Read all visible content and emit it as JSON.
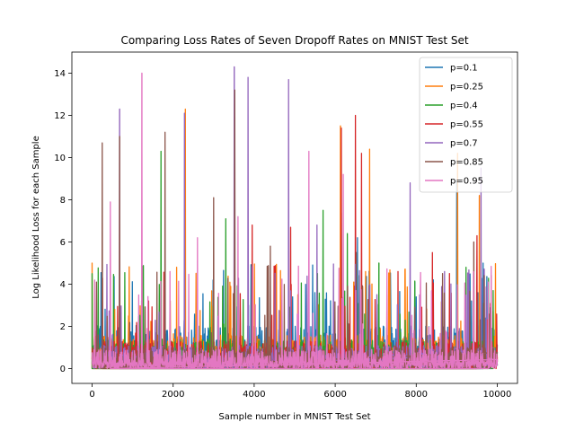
{
  "chart_data": {
    "type": "line",
    "title": "Comparing Loss Rates of Seven Dropoff Rates on MNIST Test Set",
    "xlabel": "Sample number in MNIST Test Set",
    "ylabel": "Log Likelihood Loss for each Sample",
    "xlim": [
      -500,
      10500
    ],
    "ylim": [
      -0.7,
      15.0
    ],
    "xticks": [
      0,
      2000,
      4000,
      6000,
      8000,
      10000
    ],
    "yticks": [
      0,
      2,
      4,
      6,
      8,
      10,
      12,
      14
    ],
    "grid": false,
    "legend_position": "top-right",
    "series": [
      {
        "name": "p=0.1",
        "color": "#1f77b4",
        "baseline": 2.05,
        "peaks": [
          [
            3860,
            3.0
          ],
          [
            4950,
            3.4
          ],
          [
            5500,
            3.6
          ],
          [
            6150,
            7.4
          ],
          [
            6550,
            6.2
          ],
          [
            8000,
            3.4
          ],
          [
            9000,
            8.9
          ],
          [
            9650,
            5.0
          ]
        ]
      },
      {
        "name": "p=0.25",
        "color": "#ff7f0e",
        "baseline": 1.6,
        "peaks": [
          [
            0,
            5.0
          ],
          [
            2300,
            12.3
          ],
          [
            3420,
            3.9
          ],
          [
            6130,
            11.5
          ],
          [
            6460,
            4.1
          ],
          [
            6850,
            10.4
          ],
          [
            9020,
            10.2
          ],
          [
            9560,
            8.2
          ]
        ]
      },
      {
        "name": "p=0.4",
        "color": "#2ca02c",
        "baseline": 1.4,
        "peaks": [
          [
            0,
            4.5
          ],
          [
            1700,
            10.3
          ],
          [
            3300,
            7.1
          ],
          [
            5700,
            7.5
          ],
          [
            6300,
            6.4
          ],
          [
            7080,
            5.0
          ],
          [
            9230,
            4.8
          ],
          [
            9900,
            3.7
          ]
        ]
      },
      {
        "name": "p=0.55",
        "color": "#d62728",
        "baseline": 1.3,
        "peaks": [
          [
            3950,
            6.8
          ],
          [
            4900,
            6.7
          ],
          [
            6150,
            11.4
          ],
          [
            6500,
            12.0
          ],
          [
            6650,
            10.2
          ],
          [
            7550,
            4.6
          ],
          [
            8400,
            5.5
          ],
          [
            9500,
            6.3
          ]
        ]
      },
      {
        "name": "p=0.7",
        "color": "#9467bd",
        "baseline": 1.1,
        "peaks": [
          [
            680,
            12.3
          ],
          [
            2280,
            12.1
          ],
          [
            3510,
            14.3
          ],
          [
            3850,
            13.8
          ],
          [
            4850,
            13.7
          ],
          [
            5550,
            6.8
          ],
          [
            7850,
            8.8
          ],
          [
            9600,
            9.5
          ]
        ]
      },
      {
        "name": "p=0.85",
        "color": "#8c564b",
        "baseline": 1.0,
        "peaks": [
          [
            250,
            10.7
          ],
          [
            680,
            11.0
          ],
          [
            1800,
            11.2
          ],
          [
            3000,
            8.1
          ],
          [
            3520,
            13.2
          ],
          [
            4400,
            5.8
          ],
          [
            6520,
            5.5
          ],
          [
            9420,
            6.0
          ]
        ]
      },
      {
        "name": "p=0.95",
        "color": "#e377c2",
        "baseline": 0.9,
        "peaks": [
          [
            450,
            7.9
          ],
          [
            1230,
            14.0
          ],
          [
            2600,
            6.2
          ],
          [
            3600,
            7.2
          ],
          [
            5350,
            10.3
          ],
          [
            6200,
            9.2
          ],
          [
            8100,
            3.8
          ],
          [
            9780,
            4.1
          ]
        ]
      }
    ]
  }
}
